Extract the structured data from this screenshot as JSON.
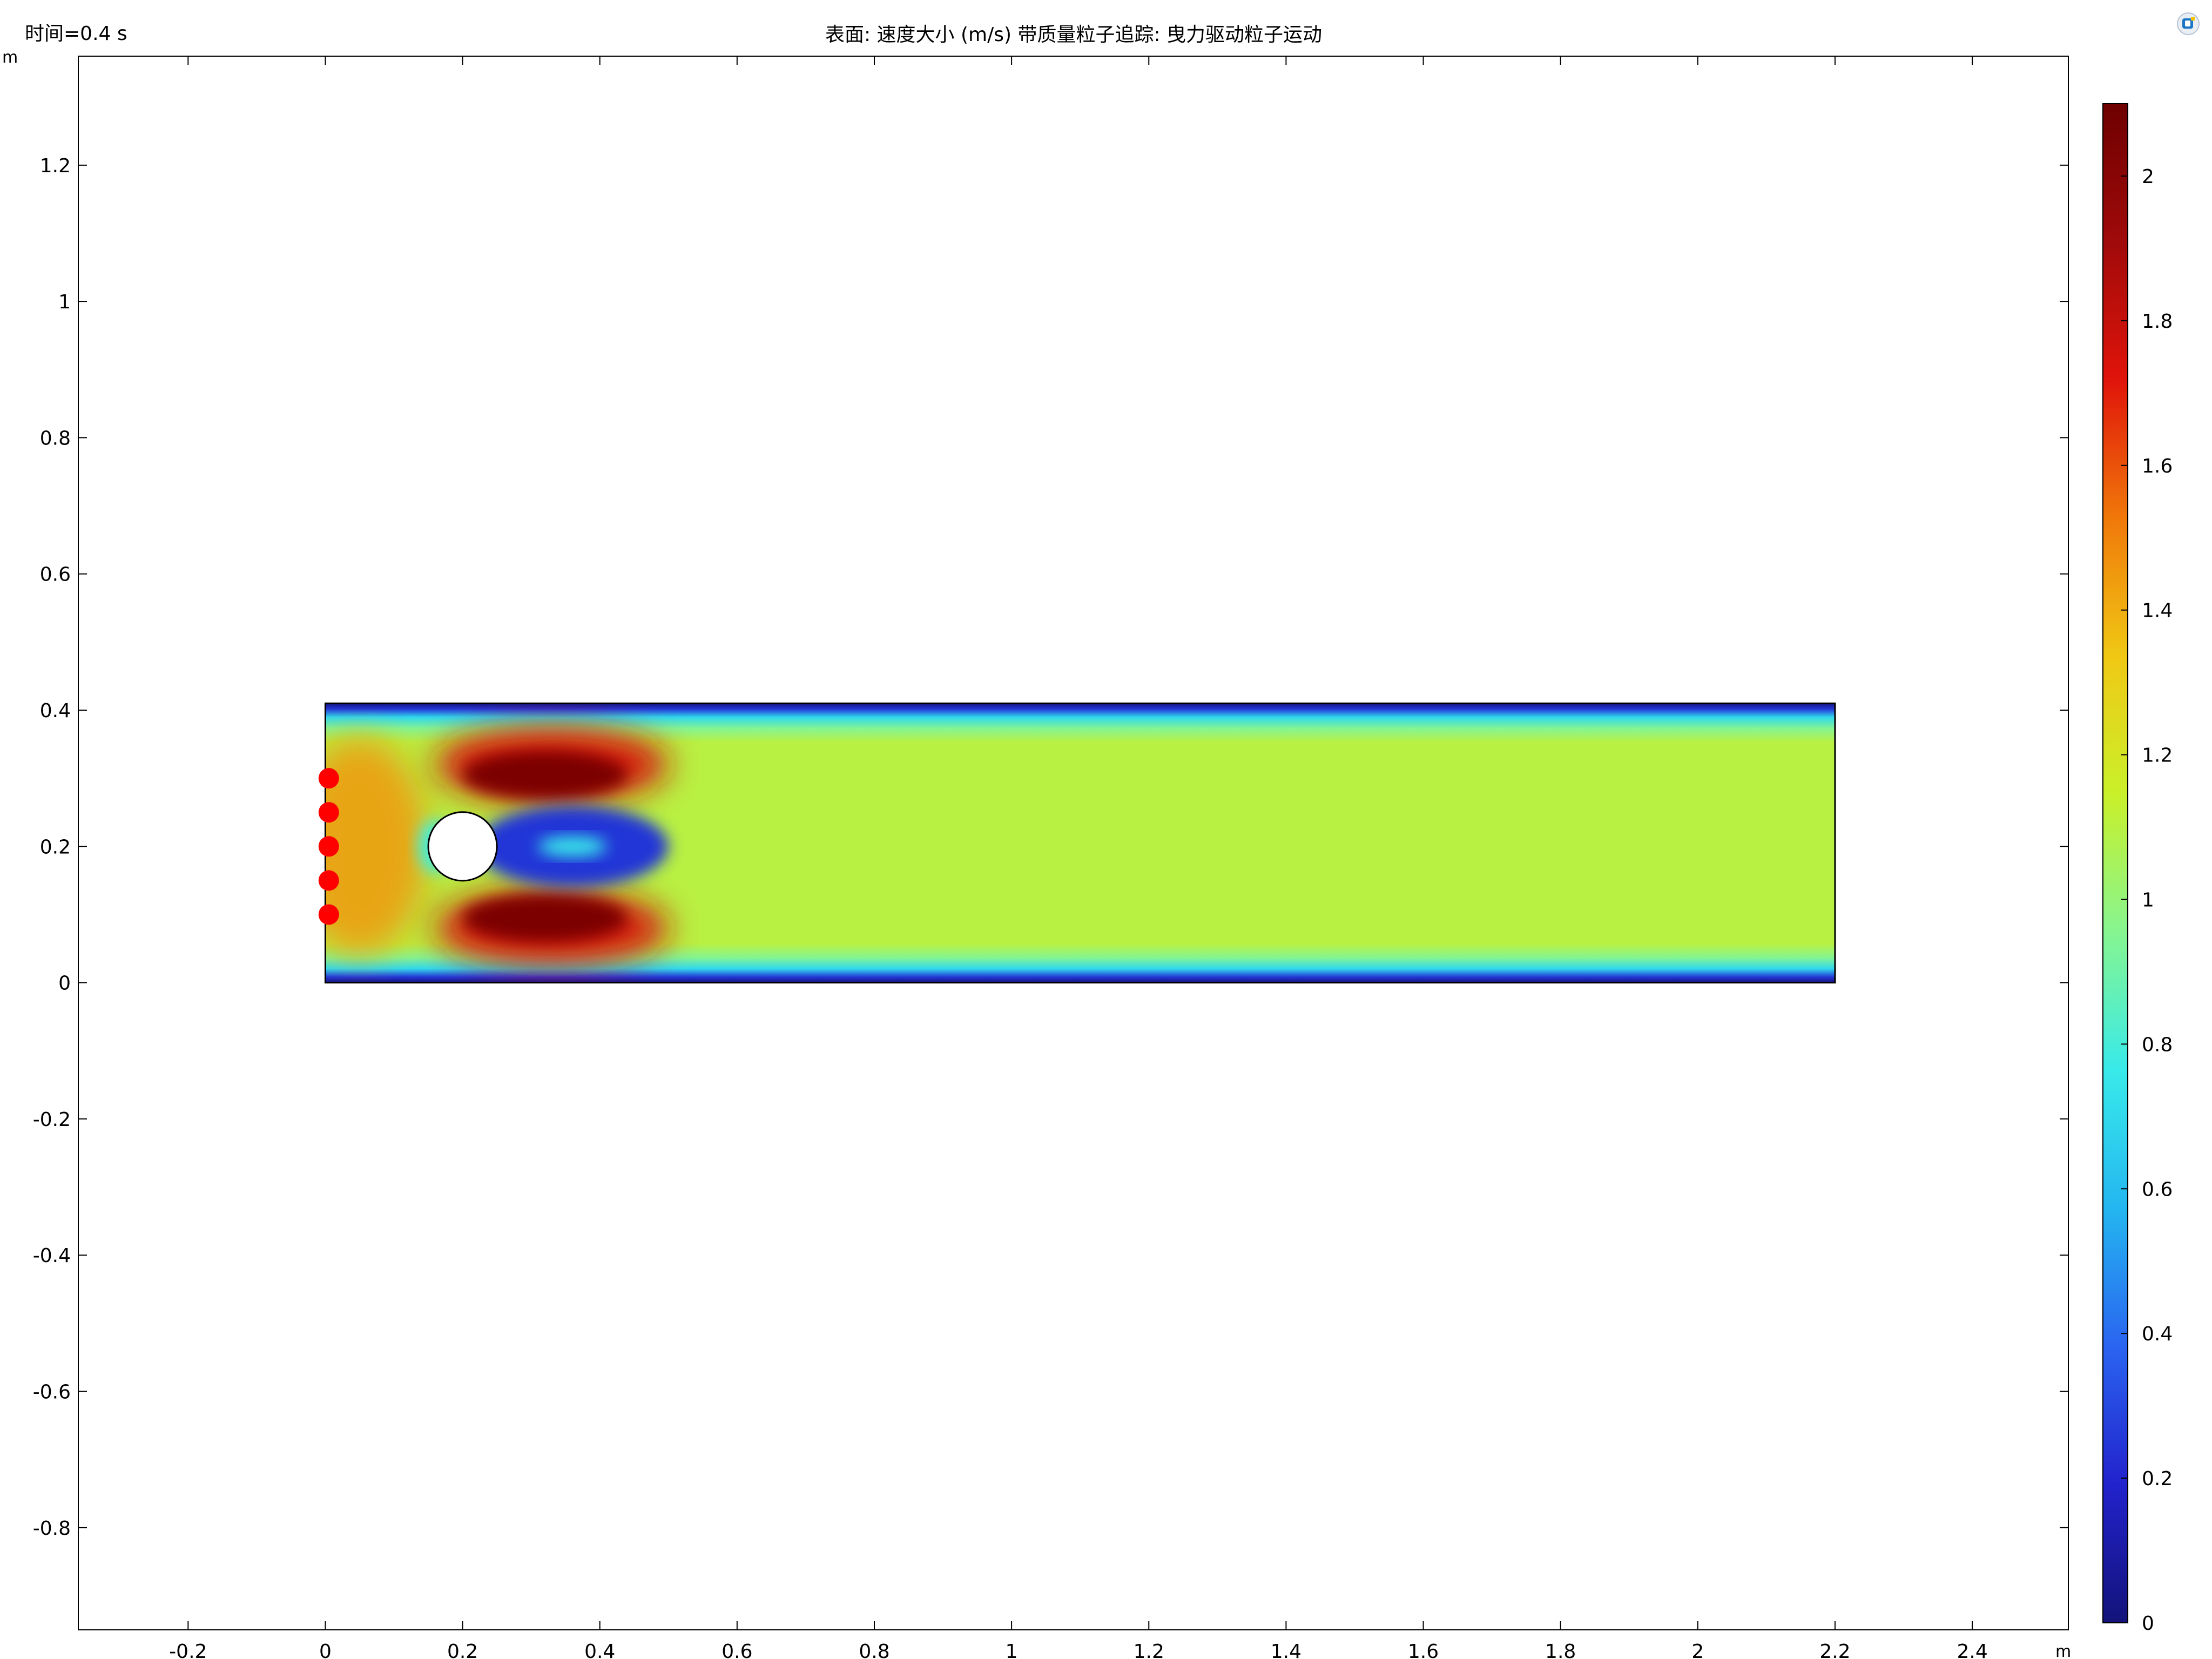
{
  "header": {
    "time_label": "时间=0.4 s",
    "title": "表面: 速度大小 (m/s) 带质量粒子追踪: 曳力驱动粒子运动"
  },
  "app_icon": {
    "name": "comsol-logo-icon",
    "color": "#1c74c4"
  },
  "chart_data": {
    "type": "heatmap",
    "title": "表面: 速度大小 (m/s) 带质量粒子追踪: 曳力驱动粒子运动",
    "x_unit": "m",
    "y_unit": "m",
    "xlim": [
      -0.36,
      2.54
    ],
    "ylim": [
      -0.95,
      1.36
    ],
    "x_ticks": [
      "-0.2",
      "0",
      "0.2",
      "0.4",
      "0.6",
      "0.8",
      "1",
      "1.2",
      "1.4",
      "1.6",
      "1.8",
      "2",
      "2.2",
      "2.4"
    ],
    "x_tick_values": [
      -0.2,
      0,
      0.2,
      0.4,
      0.6,
      0.8,
      1,
      1.2,
      1.4,
      1.6,
      1.8,
      2,
      2.2,
      2.4
    ],
    "y_ticks": [
      "1.2",
      "1",
      "0.8",
      "0.6",
      "0.4",
      "0.2",
      "0",
      "-0.2",
      "-0.4",
      "-0.6",
      "-0.8"
    ],
    "y_tick_values": [
      1.2,
      1,
      0.8,
      0.6,
      0.4,
      0.2,
      0,
      -0.2,
      -0.4,
      -0.6,
      -0.8
    ],
    "domain": {
      "x": [
        0,
        2.2
      ],
      "y": [
        0,
        0.41
      ]
    },
    "cylinder": {
      "cx": 0.2,
      "cy": 0.2,
      "r": 0.05
    },
    "particles": [
      {
        "x": 0.005,
        "y": 0.3
      },
      {
        "x": 0.005,
        "y": 0.25
      },
      {
        "x": 0.005,
        "y": 0.2
      },
      {
        "x": 0.005,
        "y": 0.15
      },
      {
        "x": 0.005,
        "y": 0.1
      }
    ],
    "particle_color": "#ff0000",
    "free_stream_value": 1.1,
    "colorbar": {
      "min": 0,
      "max": 2.1,
      "ticks": [
        "2",
        "1.8",
        "1.6",
        "1.4",
        "1.2",
        "1",
        "0.8",
        "0.6",
        "0.4",
        "0.2",
        "0"
      ],
      "tick_values": [
        2,
        1.8,
        1.6,
        1.4,
        1.2,
        1,
        0.8,
        0.6,
        0.4,
        0.2,
        0
      ],
      "colormap": "rainbow",
      "stops": [
        "#13137a",
        "#2222cc",
        "#2a64f0",
        "#24b6f0",
        "#38eaea",
        "#86f590",
        "#c9f02a",
        "#f0c814",
        "#f0780a",
        "#e0140a",
        "#a00a0a",
        "#6e0000"
      ]
    }
  }
}
